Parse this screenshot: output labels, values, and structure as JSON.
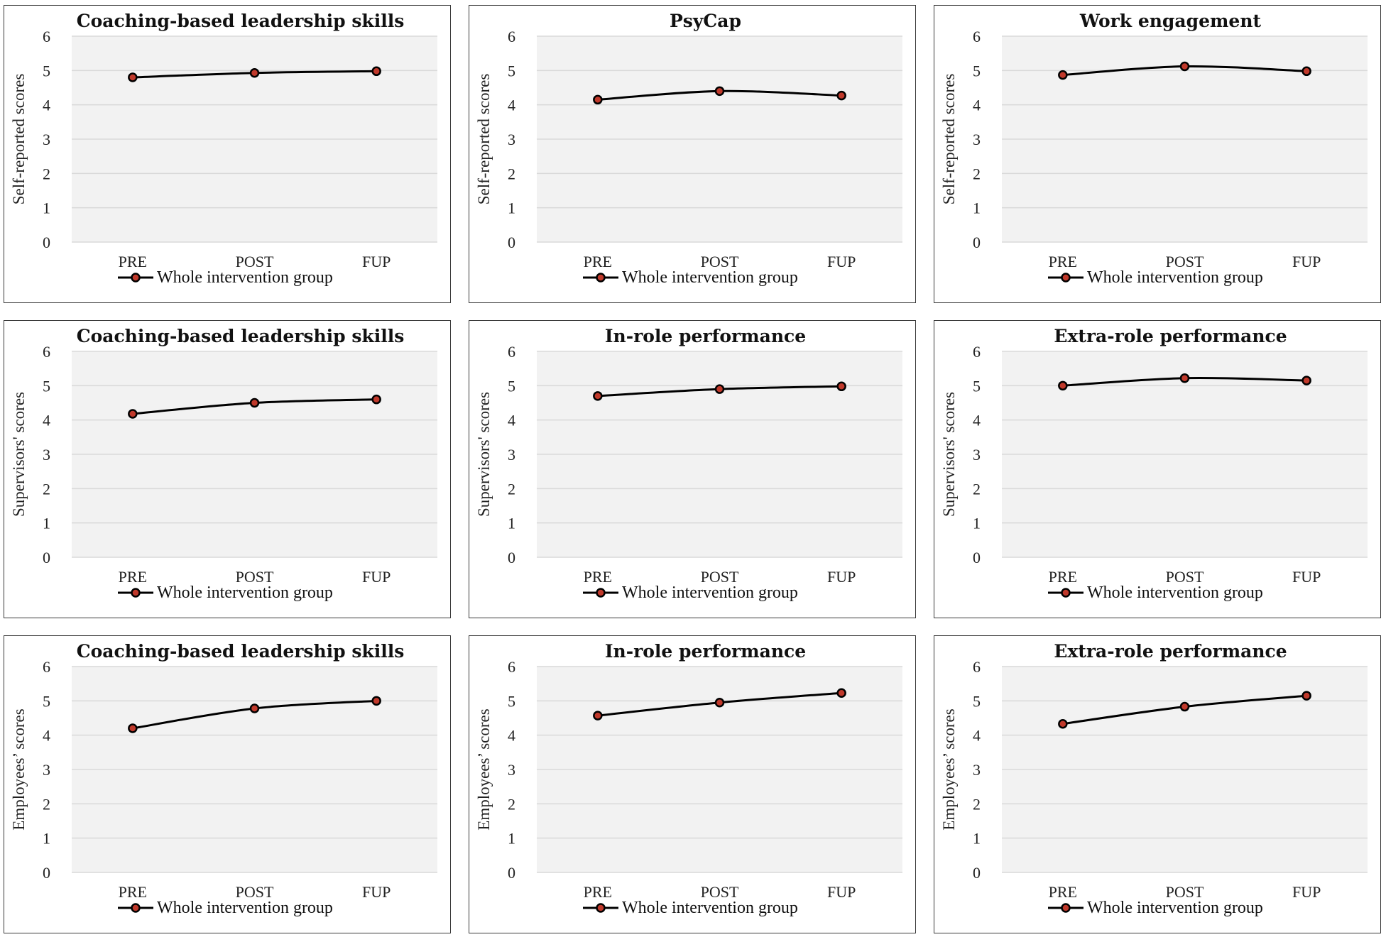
{
  "legend_label": "Whole intervention group",
  "colors": {
    "line": "#000000",
    "marker_fill": "#c0392b",
    "plot_bg": "#f2f2f2",
    "grid": "#d9d9d9"
  },
  "chart_data": [
    {
      "type": "line",
      "title": "Coaching-based leadership skills",
      "ylabel": "Self-reported scores",
      "categories": [
        "PRE",
        "POST",
        "FUP"
      ],
      "ylim": [
        0,
        6
      ],
      "yticks": [
        "0",
        "1",
        "2",
        "3",
        "4",
        "5",
        "6"
      ],
      "series": [
        {
          "name": "Whole intervention group",
          "values": [
            4.8,
            4.93,
            4.98
          ]
        }
      ]
    },
    {
      "type": "line",
      "title": "PsyCap",
      "ylabel": "Self-reported scores",
      "categories": [
        "PRE",
        "POST",
        "FUP"
      ],
      "ylim": [
        0,
        6
      ],
      "yticks": [
        "0",
        "1",
        "2",
        "3",
        "4",
        "5",
        "6"
      ],
      "series": [
        {
          "name": "Whole intervention group",
          "values": [
            4.15,
            4.4,
            4.27
          ]
        }
      ]
    },
    {
      "type": "line",
      "title": "Work engagement",
      "ylabel": "Self-reported scores",
      "categories": [
        "PRE",
        "POST",
        "FUP"
      ],
      "ylim": [
        0,
        6
      ],
      "yticks": [
        "0",
        "1",
        "2",
        "3",
        "4",
        "5",
        "6"
      ],
      "series": [
        {
          "name": "Whole intervention group",
          "values": [
            4.87,
            5.12,
            4.98
          ]
        }
      ]
    },
    {
      "type": "line",
      "title": "Coaching-based leadership skills",
      "ylabel": "Supervisors' scores",
      "categories": [
        "PRE",
        "POST",
        "FUP"
      ],
      "ylim": [
        0,
        6
      ],
      "yticks": [
        "0",
        "1",
        "2",
        "3",
        "4",
        "5",
        "6"
      ],
      "series": [
        {
          "name": "Whole intervention group",
          "values": [
            4.18,
            4.5,
            4.6
          ]
        }
      ]
    },
    {
      "type": "line",
      "title": "In-role performance",
      "ylabel": "Supervisors' scores",
      "categories": [
        "PRE",
        "POST",
        "FUP"
      ],
      "ylim": [
        0,
        6
      ],
      "yticks": [
        "0",
        "1",
        "2",
        "3",
        "4",
        "5",
        "6"
      ],
      "series": [
        {
          "name": "Whole intervention group",
          "values": [
            4.7,
            4.9,
            4.98
          ]
        }
      ]
    },
    {
      "type": "line",
      "title": "Extra-role performance",
      "ylabel": "Supervisors' scores",
      "categories": [
        "PRE",
        "POST",
        "FUP"
      ],
      "ylim": [
        0,
        6
      ],
      "yticks": [
        "0",
        "1",
        "2",
        "3",
        "4",
        "5",
        "6"
      ],
      "series": [
        {
          "name": "Whole intervention group",
          "values": [
            5.0,
            5.22,
            5.15
          ]
        }
      ]
    },
    {
      "type": "line",
      "title": "Coaching-based leadership skills",
      "ylabel": "Employees’ scores",
      "categories": [
        "PRE",
        "POST",
        "FUP"
      ],
      "ylim": [
        0,
        6
      ],
      "yticks": [
        "0",
        "1",
        "2",
        "3",
        "4",
        "5",
        "6"
      ],
      "series": [
        {
          "name": "Whole intervention group",
          "values": [
            4.2,
            4.78,
            5.0
          ]
        }
      ]
    },
    {
      "type": "line",
      "title": "In-role performance",
      "ylabel": "Employees’ scores",
      "categories": [
        "PRE",
        "POST",
        "FUP"
      ],
      "ylim": [
        0,
        6
      ],
      "yticks": [
        "0",
        "1",
        "2",
        "3",
        "4",
        "5",
        "6"
      ],
      "series": [
        {
          "name": "Whole intervention group",
          "values": [
            4.57,
            4.95,
            5.23
          ]
        }
      ]
    },
    {
      "type": "line",
      "title": "Extra-role performance",
      "ylabel": "Employees’ scores",
      "categories": [
        "PRE",
        "POST",
        "FUP"
      ],
      "ylim": [
        0,
        6
      ],
      "yticks": [
        "0",
        "1",
        "2",
        "3",
        "4",
        "5",
        "6"
      ],
      "series": [
        {
          "name": "Whole intervention group",
          "values": [
            4.33,
            4.83,
            5.15
          ]
        }
      ]
    }
  ]
}
